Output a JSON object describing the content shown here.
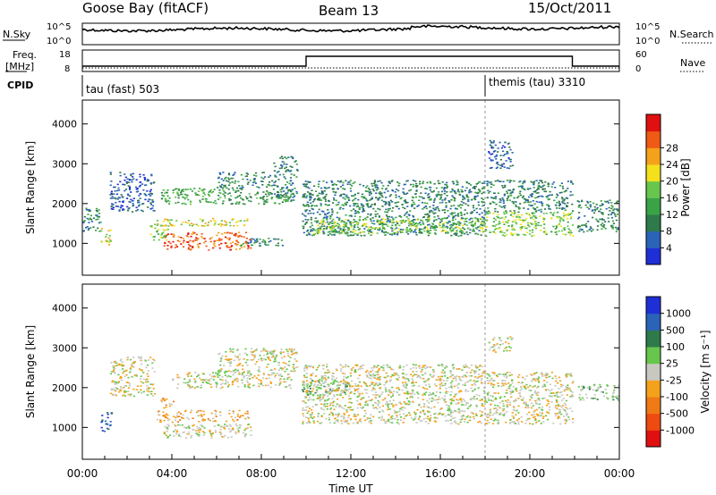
{
  "header": {
    "station": "Goose Bay (fitACF)",
    "beam": "Beam 13",
    "date": "15/Oct/2011"
  },
  "noise_panel": {
    "left_label": "N.Sky",
    "right_label": "N.Search",
    "left_ticks": [
      "10^5",
      "10^0"
    ],
    "right_ticks": [
      "10^5",
      "10^0"
    ]
  },
  "freq_panel": {
    "left_label_top": "Freq.",
    "left_label_bottom": "[MHz]",
    "right_label": "Nave",
    "left_ticks": [
      "18",
      "8"
    ],
    "right_ticks": [
      "60",
      "0"
    ]
  },
  "cpid_panel": {
    "label": "CPID",
    "modes": [
      {
        "name": "tau (fast) 503",
        "start_hour": 0
      },
      {
        "name": "themis (tau) 3310",
        "start_hour": 18
      }
    ]
  },
  "chart_data": [
    {
      "type": "heatmap",
      "name": "power",
      "ylabel": "Slant Range [km]",
      "xlabel": "",
      "ylim": [
        200,
        4600
      ],
      "yticks": [
        "1000",
        "2000",
        "3000",
        "4000"
      ],
      "colorbar": {
        "label": "Power [dB]",
        "ticks": [
          "4",
          "8",
          "12",
          "16",
          "20",
          "24",
          "28"
        ],
        "colors": [
          "#1f2fd6",
          "#2a63b8",
          "#2f7a4a",
          "#3aa346",
          "#67c64d",
          "#f2e11b",
          "#f4a21c",
          "#ef5a15",
          "#e01010"
        ]
      },
      "regions": [
        {
          "t0": 0.8,
          "t1": 1.3,
          "r0": 900,
          "r1": 1400,
          "level": 5
        },
        {
          "t0": 0.0,
          "t1": 0.8,
          "r0": 1300,
          "r1": 1900,
          "level": 2
        },
        {
          "t0": 1.2,
          "t1": 3.2,
          "r0": 1800,
          "r1": 2800,
          "level": 1
        },
        {
          "t0": 3.0,
          "t1": 3.8,
          "r0": 1100,
          "r1": 1500,
          "level": 4
        },
        {
          "t0": 3.6,
          "t1": 7.5,
          "r0": 850,
          "r1": 1300,
          "level": 7
        },
        {
          "t0": 3.3,
          "t1": 7.4,
          "r0": 1450,
          "r1": 1650,
          "level": 5
        },
        {
          "t0": 7.0,
          "t1": 9.0,
          "r0": 950,
          "r1": 1150,
          "level": 2
        },
        {
          "t0": 3.5,
          "t1": 9.3,
          "r0": 2000,
          "r1": 2400,
          "level": 3
        },
        {
          "t0": 6.0,
          "t1": 8.5,
          "r0": 2400,
          "r1": 2800,
          "level": 2
        },
        {
          "t0": 8.5,
          "t1": 9.6,
          "r0": 2100,
          "r1": 3200,
          "level": 2
        },
        {
          "t0": 9.8,
          "t1": 18.0,
          "r0": 1200,
          "r1": 2600,
          "level": 2
        },
        {
          "t0": 10.3,
          "t1": 18.0,
          "r0": 1250,
          "r1": 1650,
          "level": 4
        },
        {
          "t0": 18.0,
          "t1": 21.9,
          "r0": 1200,
          "r1": 1800,
          "level": 4
        },
        {
          "t0": 18.0,
          "t1": 21.9,
          "r0": 1800,
          "r1": 2600,
          "level": 2
        },
        {
          "t0": 18.1,
          "t1": 19.2,
          "r0": 2900,
          "r1": 3600,
          "level": 1
        },
        {
          "t0": 22.1,
          "t1": 24.0,
          "r0": 1300,
          "r1": 2100,
          "level": 2
        }
      ]
    },
    {
      "type": "heatmap",
      "name": "velocity",
      "ylabel": "Slant Range [km]",
      "xlabel": "Time UT",
      "ylim": [
        200,
        4600
      ],
      "yticks": [
        "1000",
        "2000",
        "3000",
        "4000"
      ],
      "xticks": [
        "00:00",
        "04:00",
        "08:00",
        "12:00",
        "16:00",
        "20:00",
        "00:00"
      ],
      "colorbar": {
        "label": "Velocity [m s⁻¹]",
        "ticks": [
          "1000",
          "500",
          "100",
          "25",
          "-25",
          "-100",
          "-500",
          "-1000"
        ],
        "colors": [
          "#1f2fd6",
          "#2a63b8",
          "#2f7a4a",
          "#67c64d",
          "#c8c8c0",
          "#f4a21c",
          "#ef7a15",
          "#ef4a10",
          "#e01010"
        ]
      },
      "regions": [
        {
          "t0": 0.8,
          "t1": 1.3,
          "r0": 900,
          "r1": 1400,
          "level": 1
        },
        {
          "t0": 1.2,
          "t1": 3.2,
          "r0": 1800,
          "r1": 2800,
          "level": 4
        },
        {
          "t0": 3.3,
          "t1": 7.4,
          "r0": 1150,
          "r1": 1450,
          "level": 5
        },
        {
          "t0": 3.4,
          "t1": 4.1,
          "r0": 1500,
          "r1": 1800,
          "level": 5
        },
        {
          "t0": 3.6,
          "t1": 7.5,
          "r0": 750,
          "r1": 1100,
          "level": 4
        },
        {
          "t0": 4.0,
          "t1": 9.3,
          "r0": 2000,
          "r1": 2400,
          "level": 4
        },
        {
          "t0": 6.0,
          "t1": 9.6,
          "r0": 2400,
          "r1": 3000,
          "level": 4
        },
        {
          "t0": 9.8,
          "t1": 12.0,
          "r0": 1800,
          "r1": 2200,
          "level": 3
        },
        {
          "t0": 9.8,
          "t1": 18.0,
          "r0": 1100,
          "r1": 2600,
          "level": 4
        },
        {
          "t0": 18.0,
          "t1": 21.9,
          "r0": 1100,
          "r1": 2400,
          "level": 4
        },
        {
          "t0": 18.1,
          "t1": 19.2,
          "r0": 2900,
          "r1": 3300,
          "level": 4
        },
        {
          "t0": 22.1,
          "t1": 24.0,
          "r0": 1700,
          "r1": 2100,
          "level": 3
        }
      ]
    }
  ]
}
